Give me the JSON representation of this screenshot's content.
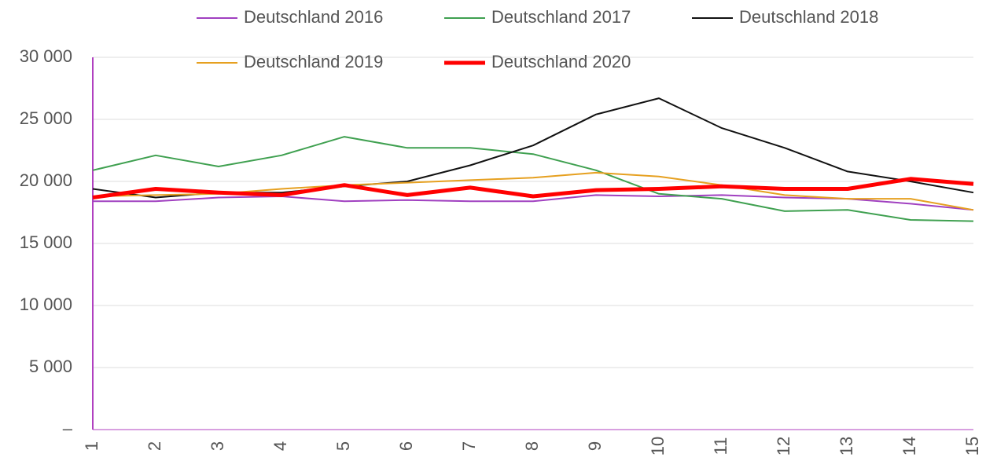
{
  "chart_data": {
    "type": "line",
    "categories": [
      "1",
      "2",
      "3",
      "4",
      "5",
      "6",
      "7",
      "8",
      "9",
      "10",
      "11",
      "12",
      "13",
      "14",
      "15"
    ],
    "series": [
      {
        "name": "Deutschland 2016",
        "color": "#a040c0",
        "width": 2,
        "values": [
          18400,
          18400,
          18700,
          18800,
          18400,
          18500,
          18400,
          18400,
          18900,
          18800,
          18900,
          18700,
          18600,
          18200,
          17700
        ]
      },
      {
        "name": "Deutschland 2017",
        "color": "#3fa050",
        "width": 2,
        "values": [
          20900,
          22100,
          21200,
          22100,
          23600,
          22700,
          22700,
          22200,
          20900,
          19000,
          18600,
          17600,
          17700,
          16900,
          16800
        ]
      },
      {
        "name": "Deutschland 2018",
        "color": "#111111",
        "width": 2,
        "values": [
          19400,
          18700,
          19100,
          19100,
          19600,
          20000,
          21300,
          22900,
          25400,
          26700,
          24300,
          22700,
          20800,
          20000,
          19100
        ]
      },
      {
        "name": "Deutschland 2019",
        "color": "#e6a020",
        "width": 2,
        "values": [
          18800,
          18900,
          19000,
          19400,
          19700,
          19900,
          20100,
          20300,
          20700,
          20400,
          19700,
          18900,
          18600,
          18600,
          17700
        ]
      },
      {
        "name": "Deutschland 2020",
        "color": "#ff0000",
        "width": 5,
        "values": [
          18700,
          19400,
          19100,
          18900,
          19700,
          18900,
          19500,
          18800,
          19300,
          19400,
          19600,
          19400,
          19400,
          20200,
          19800
        ]
      }
    ],
    "ylim": [
      0,
      30000
    ],
    "yticks": [
      {
        "value": 0,
        "label": "–"
      },
      {
        "value": 5000,
        "label": "5 000"
      },
      {
        "value": 10000,
        "label": "10 000"
      },
      {
        "value": 15000,
        "label": "15 000"
      },
      {
        "value": 20000,
        "label": "20 000"
      },
      {
        "value": 25000,
        "label": "25 000"
      },
      {
        "value": 30000,
        "label": "30 000"
      }
    ],
    "grid": true
  }
}
